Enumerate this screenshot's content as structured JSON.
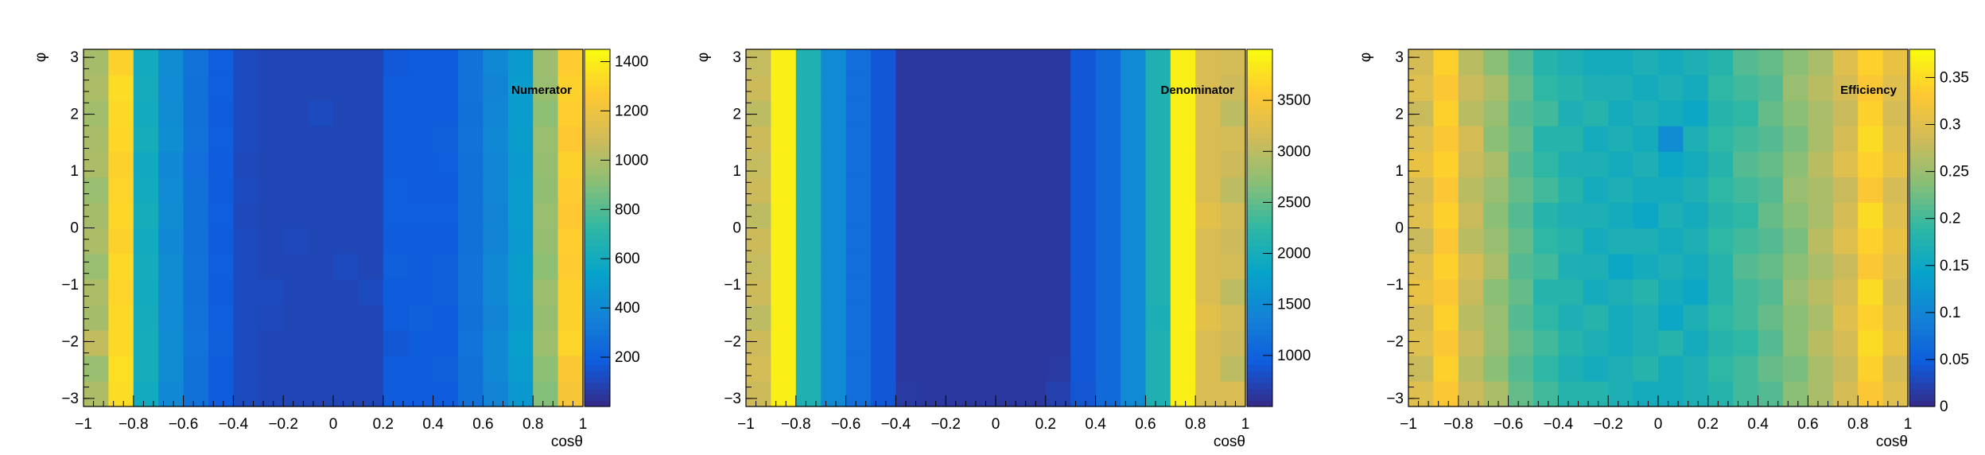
{
  "chart_data": [
    {
      "type": "heatmap",
      "title": "Numerator",
      "xlabel": "cosθ",
      "ylabel": "φ",
      "xlim": [
        -1,
        1
      ],
      "ylim": [
        -3.14159,
        3.14159
      ],
      "xticks": [
        "−1",
        "−0.8",
        "−0.6",
        "−0.4",
        "−0.2",
        "0",
        "0.2",
        "0.4",
        "0.6",
        "0.8",
        "1"
      ],
      "yticks": [
        "−3",
        "−2",
        "−1",
        "0",
        "1",
        "2",
        "3"
      ],
      "zlim": [
        0,
        1450
      ],
      "zticks": [
        {
          "value": 200,
          "label": "200"
        },
        {
          "value": 400,
          "label": "400"
        },
        {
          "value": 600,
          "label": "600"
        },
        {
          "value": 800,
          "label": "800"
        },
        {
          "value": 1000,
          "label": "1000"
        },
        {
          "value": 1200,
          "label": "1200"
        },
        {
          "value": 1400,
          "label": "1400"
        }
      ],
      "z": [
        [
          1000,
          1340,
          600,
          400,
          280,
          180,
          120,
          100,
          100,
          100,
          100,
          100,
          180,
          180,
          180,
          280,
          380,
          480,
          900,
          1240
        ],
        [
          950,
          1350,
          620,
          420,
          280,
          180,
          120,
          100,
          100,
          100,
          100,
          100,
          180,
          180,
          200,
          280,
          400,
          500,
          920,
          1260
        ],
        [
          1050,
          1330,
          620,
          420,
          300,
          200,
          120,
          100,
          100,
          100,
          100,
          100,
          160,
          180,
          180,
          300,
          400,
          520,
          960,
          1310
        ],
        [
          980,
          1330,
          610,
          410,
          290,
          190,
          120,
          110,
          100,
          100,
          100,
          100,
          180,
          200,
          180,
          280,
          380,
          490,
          940,
          1300
        ],
        [
          1000,
          1310,
          600,
          410,
          280,
          180,
          120,
          120,
          100,
          100,
          100,
          120,
          180,
          180,
          200,
          290,
          400,
          500,
          960,
          1300
        ],
        [
          950,
          1330,
          610,
          420,
          290,
          190,
          120,
          100,
          100,
          100,
          120,
          100,
          200,
          180,
          200,
          290,
          400,
          510,
          920,
          1280
        ],
        [
          1000,
          1300,
          600,
          400,
          280,
          180,
          120,
          100,
          110,
          100,
          100,
          100,
          180,
          180,
          180,
          280,
          380,
          490,
          940,
          1290
        ],
        [
          980,
          1320,
          620,
          420,
          280,
          190,
          110,
          100,
          100,
          100,
          100,
          100,
          190,
          190,
          190,
          280,
          380,
          500,
          950,
          1270
        ],
        [
          950,
          1310,
          600,
          410,
          280,
          180,
          120,
          100,
          100,
          100,
          100,
          100,
          190,
          180,
          180,
          280,
          390,
          500,
          930,
          1280
        ],
        [
          1000,
          1300,
          590,
          400,
          270,
          180,
          110,
          100,
          100,
          100,
          100,
          100,
          180,
          180,
          190,
          280,
          390,
          490,
          940,
          1300
        ],
        [
          990,
          1320,
          620,
          430,
          290,
          190,
          120,
          100,
          100,
          100,
          100,
          100,
          180,
          180,
          200,
          290,
          400,
          510,
          950,
          1270
        ],
        [
          970,
          1330,
          600,
          420,
          280,
          180,
          120,
          100,
          100,
          120,
          100,
          100,
          180,
          180,
          180,
          280,
          390,
          500,
          920,
          1290
        ],
        [
          1000,
          1340,
          610,
          410,
          280,
          190,
          120,
          100,
          100,
          100,
          100,
          100,
          180,
          180,
          180,
          290,
          380,
          500,
          950,
          1300
        ],
        [
          980,
          1300,
          600,
          420,
          290,
          190,
          120,
          100,
          100,
          100,
          100,
          100,
          170,
          180,
          180,
          290,
          400,
          490,
          960,
          1280
        ]
      ]
    },
    {
      "type": "heatmap",
      "title": "Denominator",
      "xlabel": "cosθ",
      "ylabel": "φ",
      "xlim": [
        -1,
        1
      ],
      "ylim": [
        -3.14159,
        3.14159
      ],
      "xticks": [
        "−1",
        "−0.8",
        "−0.6",
        "−0.4",
        "−0.2",
        "0",
        "0.2",
        "0.4",
        "0.6",
        "0.8",
        "1"
      ],
      "yticks": [
        "−3",
        "−2",
        "−1",
        "0",
        "1",
        "2",
        "3"
      ],
      "zlim": [
        500,
        4000
      ],
      "zticks": [
        {
          "value": 1000,
          "label": "1000"
        },
        {
          "value": 1500,
          "label": "1500"
        },
        {
          "value": 2000,
          "label": "2000"
        },
        {
          "value": 2500,
          "label": "2500"
        },
        {
          "value": 3000,
          "label": "3000"
        },
        {
          "value": 3500,
          "label": "3500"
        }
      ],
      "z": [
        [
          3100,
          3900,
          2100,
          1500,
          1150,
          900,
          640,
          620,
          620,
          620,
          620,
          620,
          700,
          880,
          1100,
          1500,
          2100,
          3900,
          3200,
          3200
        ],
        [
          3150,
          3900,
          2100,
          1500,
          1150,
          900,
          620,
          620,
          620,
          620,
          620,
          620,
          640,
          900,
          1100,
          1500,
          2100,
          3900,
          3200,
          3000
        ],
        [
          3100,
          3900,
          2100,
          1500,
          1150,
          900,
          620,
          620,
          620,
          620,
          620,
          620,
          620,
          900,
          1100,
          1500,
          2100,
          3900,
          3200,
          3100
        ],
        [
          3000,
          3900,
          2100,
          1500,
          1150,
          900,
          620,
          620,
          620,
          620,
          620,
          620,
          620,
          900,
          1100,
          1500,
          2050,
          3900,
          3300,
          3150
        ],
        [
          3100,
          3900,
          2100,
          1500,
          1150,
          900,
          620,
          620,
          620,
          620,
          620,
          620,
          620,
          900,
          1100,
          1500,
          2100,
          3900,
          3200,
          3000
        ],
        [
          3050,
          3900,
          2100,
          1500,
          1150,
          900,
          620,
          620,
          620,
          620,
          620,
          620,
          620,
          900,
          1100,
          1500,
          2100,
          3900,
          3200,
          3150
        ],
        [
          3100,
          3900,
          2100,
          1500,
          1150,
          900,
          620,
          620,
          620,
          620,
          620,
          620,
          620,
          900,
          1100,
          1500,
          2100,
          3900,
          3200,
          3100
        ],
        [
          3000,
          3900,
          2100,
          1500,
          1150,
          900,
          620,
          620,
          620,
          620,
          620,
          620,
          620,
          900,
          1100,
          1500,
          2100,
          3900,
          3300,
          3150
        ],
        [
          3100,
          3900,
          2100,
          1500,
          1150,
          900,
          620,
          620,
          620,
          620,
          620,
          620,
          620,
          900,
          1100,
          1500,
          2100,
          3900,
          3200,
          3000
        ],
        [
          3050,
          3900,
          2100,
          1500,
          1150,
          900,
          620,
          620,
          620,
          620,
          620,
          620,
          620,
          900,
          1100,
          1500,
          2100,
          3900,
          3200,
          3100
        ],
        [
          3100,
          3900,
          2100,
          1500,
          1150,
          900,
          620,
          620,
          620,
          620,
          620,
          620,
          620,
          900,
          1100,
          1500,
          2100,
          3900,
          3200,
          3150
        ],
        [
          3000,
          3900,
          2100,
          1500,
          1150,
          900,
          620,
          620,
          620,
          620,
          620,
          620,
          620,
          900,
          1100,
          1500,
          2100,
          3900,
          3200,
          3000
        ],
        [
          3100,
          3900,
          2100,
          1500,
          1150,
          900,
          620,
          620,
          620,
          620,
          620,
          620,
          620,
          900,
          1100,
          1500,
          2100,
          3900,
          3200,
          3100
        ],
        [
          3050,
          3900,
          2100,
          1500,
          1150,
          900,
          620,
          620,
          620,
          620,
          620,
          620,
          620,
          900,
          1100,
          1500,
          2100,
          3900,
          3200,
          3150
        ]
      ]
    },
    {
      "type": "heatmap",
      "title": "Efficiency",
      "xlabel": "cosθ",
      "ylabel": "φ",
      "xlim": [
        -1,
        1
      ],
      "ylim": [
        -3.14159,
        3.14159
      ],
      "xticks": [
        "−1",
        "−0.8",
        "−0.6",
        "−0.4",
        "−0.2",
        "0",
        "0.2",
        "0.4",
        "0.6",
        "0.8",
        "1"
      ],
      "yticks": [
        "−3",
        "−2",
        "−1",
        "0",
        "1",
        "2",
        "3"
      ],
      "zlim": [
        0,
        0.38
      ],
      "zticks": [
        {
          "value": 0,
          "label": "0"
        },
        {
          "value": 0.05,
          "label": "0.05"
        },
        {
          "value": 0.1,
          "label": "0.1"
        },
        {
          "value": 0.15,
          "label": "0.15"
        },
        {
          "value": 0.2,
          "label": "0.2"
        },
        {
          "value": 0.25,
          "label": "0.25"
        },
        {
          "value": 0.3,
          "label": "0.3"
        },
        {
          "value": 0.35,
          "label": "0.35"
        }
      ],
      "z": [
        [
          0.3,
          0.33,
          0.28,
          0.26,
          0.22,
          0.2,
          0.18,
          0.18,
          0.17,
          0.16,
          0.16,
          0.17,
          0.18,
          0.2,
          0.21,
          0.24,
          0.26,
          0.29,
          0.33,
          0.3
        ],
        [
          0.28,
          0.34,
          0.27,
          0.24,
          0.21,
          0.19,
          0.17,
          0.16,
          0.17,
          0.18,
          0.16,
          0.17,
          0.19,
          0.2,
          0.22,
          0.23,
          0.26,
          0.28,
          0.34,
          0.29
        ],
        [
          0.3,
          0.33,
          0.28,
          0.25,
          0.22,
          0.2,
          0.18,
          0.17,
          0.16,
          0.17,
          0.18,
          0.16,
          0.18,
          0.19,
          0.21,
          0.24,
          0.27,
          0.29,
          0.35,
          0.31
        ],
        [
          0.29,
          0.34,
          0.27,
          0.25,
          0.21,
          0.19,
          0.17,
          0.18,
          0.16,
          0.17,
          0.15,
          0.17,
          0.19,
          0.2,
          0.22,
          0.24,
          0.26,
          0.3,
          0.34,
          0.3
        ],
        [
          0.31,
          0.33,
          0.28,
          0.24,
          0.22,
          0.18,
          0.18,
          0.16,
          0.17,
          0.18,
          0.16,
          0.15,
          0.18,
          0.2,
          0.21,
          0.25,
          0.27,
          0.29,
          0.35,
          0.29
        ],
        [
          0.3,
          0.34,
          0.29,
          0.26,
          0.21,
          0.2,
          0.17,
          0.17,
          0.15,
          0.16,
          0.17,
          0.16,
          0.18,
          0.21,
          0.22,
          0.24,
          0.26,
          0.28,
          0.33,
          0.3
        ],
        [
          0.28,
          0.33,
          0.27,
          0.25,
          0.22,
          0.19,
          0.18,
          0.16,
          0.17,
          0.17,
          0.16,
          0.17,
          0.19,
          0.2,
          0.21,
          0.23,
          0.27,
          0.3,
          0.34,
          0.31
        ],
        [
          0.3,
          0.34,
          0.28,
          0.24,
          0.21,
          0.18,
          0.17,
          0.17,
          0.16,
          0.15,
          0.17,
          0.16,
          0.18,
          0.19,
          0.22,
          0.24,
          0.26,
          0.29,
          0.35,
          0.3
        ],
        [
          0.29,
          0.33,
          0.27,
          0.25,
          0.22,
          0.2,
          0.18,
          0.16,
          0.17,
          0.16,
          0.16,
          0.17,
          0.19,
          0.2,
          0.21,
          0.25,
          0.26,
          0.28,
          0.33,
          0.29
        ],
        [
          0.31,
          0.34,
          0.28,
          0.26,
          0.21,
          0.19,
          0.17,
          0.17,
          0.16,
          0.17,
          0.15,
          0.16,
          0.18,
          0.21,
          0.22,
          0.24,
          0.27,
          0.3,
          0.34,
          0.31
        ],
        [
          0.3,
          0.33,
          0.29,
          0.24,
          0.22,
          0.18,
          0.18,
          0.16,
          0.17,
          0.16,
          0.11,
          0.17,
          0.19,
          0.2,
          0.21,
          0.23,
          0.26,
          0.29,
          0.35,
          0.3
        ],
        [
          0.28,
          0.34,
          0.27,
          0.25,
          0.21,
          0.2,
          0.17,
          0.18,
          0.16,
          0.17,
          0.16,
          0.15,
          0.18,
          0.19,
          0.22,
          0.24,
          0.26,
          0.28,
          0.34,
          0.29
        ],
        [
          0.3,
          0.33,
          0.28,
          0.26,
          0.22,
          0.19,
          0.18,
          0.17,
          0.17,
          0.16,
          0.17,
          0.16,
          0.19,
          0.2,
          0.21,
          0.25,
          0.27,
          0.29,
          0.33,
          0.3
        ],
        [
          0.29,
          0.34,
          0.27,
          0.24,
          0.21,
          0.18,
          0.17,
          0.16,
          0.16,
          0.17,
          0.16,
          0.17,
          0.18,
          0.21,
          0.22,
          0.24,
          0.26,
          0.3,
          0.34,
          0.31
        ]
      ]
    }
  ]
}
